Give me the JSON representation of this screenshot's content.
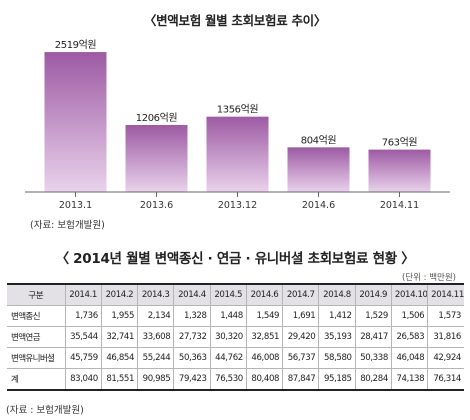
{
  "chart_data": {
    "type": "bar",
    "title": "〈변액보험 월별 초회보험료 추이〉",
    "categories": [
      "2013.1",
      "2013.6",
      "2013.12",
      "2014.6",
      "2014.11"
    ],
    "values": [
      2519,
      1206,
      1356,
      804,
      763
    ],
    "value_labels": [
      "2519억원",
      "1206억원",
      "1356억원",
      "804억원",
      "763억원"
    ],
    "ylim": [
      0,
      2700
    ],
    "grid": false,
    "source": "(자료: 보험개발원)",
    "colors": {
      "bar_top": "#9d5aa3",
      "bar_bottom": "#e9d2ec",
      "axis": "#666666"
    }
  },
  "table": {
    "title": "〈 2014년 월별 변액종신 · 연금 · 유니버셜 초회보험료 현황 〉",
    "unit": "(단위 : 백만원)",
    "corner": "구분",
    "columns": [
      "2014.1",
      "2014.2",
      "2014.3",
      "2014.4",
      "2014.5",
      "2014.6",
      "2014.7",
      "2014.8",
      "2014.9",
      "2014.10",
      "2014.11"
    ],
    "rows": [
      {
        "label": "변액종신",
        "values": [
          "1,736",
          "1,955",
          "2,134",
          "1,328",
          "1,448",
          "1,549",
          "1,691",
          "1,412",
          "1,529",
          "1,506",
          "1,573"
        ]
      },
      {
        "label": "변액연금",
        "values": [
          "35,544",
          "32,741",
          "33,608",
          "27,732",
          "30,320",
          "32,851",
          "29,420",
          "35,193",
          "28,417",
          "26,583",
          "31,816"
        ]
      },
      {
        "label": "변액유니버셜",
        "values": [
          "45,759",
          "46,854",
          "55,244",
          "50,363",
          "44,762",
          "46,008",
          "56,737",
          "58,580",
          "50,338",
          "46,048",
          "42,924"
        ]
      },
      {
        "label": "계",
        "values": [
          "83,040",
          "81,551",
          "90,985",
          "79,423",
          "76,530",
          "80,408",
          "87,847",
          "95,185",
          "80,284",
          "74,138",
          "76,314"
        ]
      }
    ],
    "source": "(자료 : 보험개발원)"
  }
}
